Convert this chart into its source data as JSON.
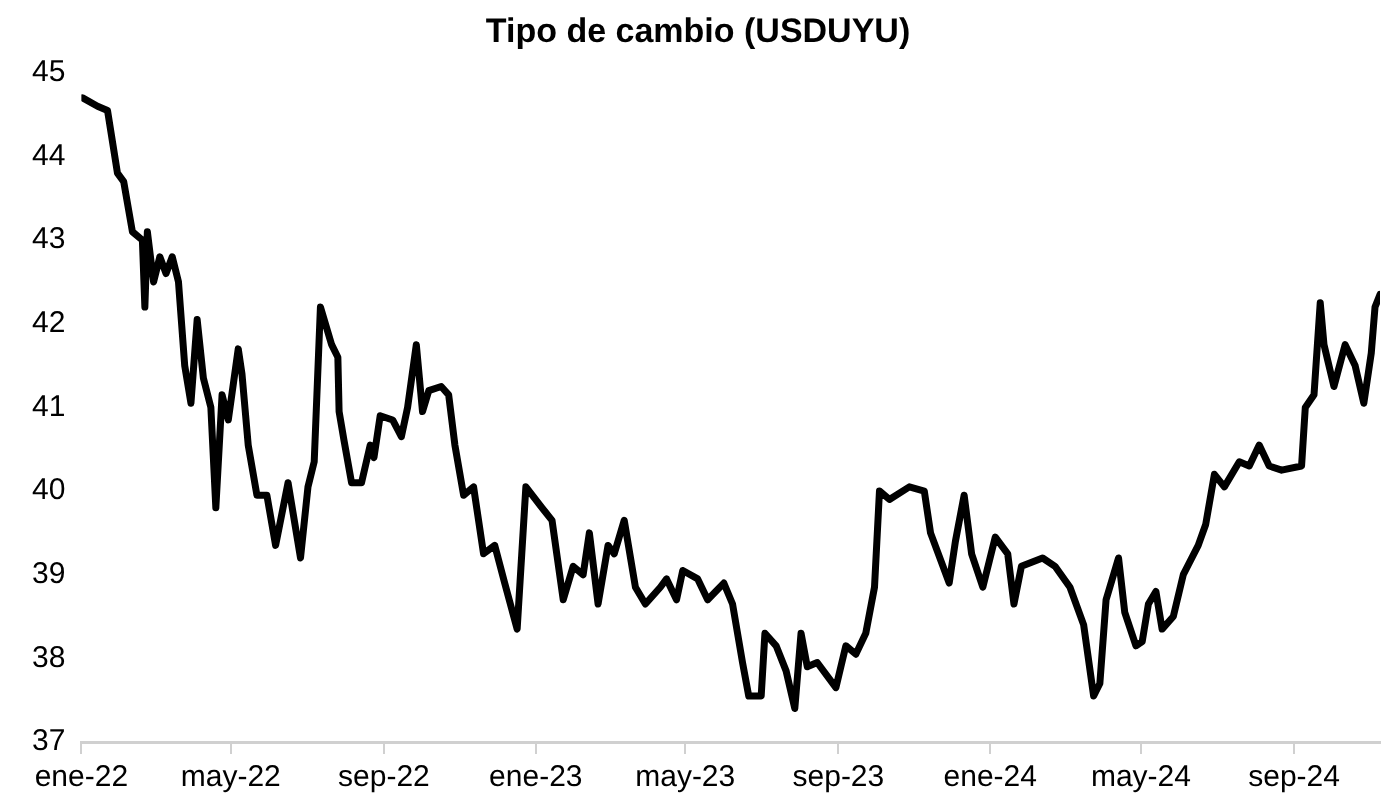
{
  "chart_data": {
    "type": "line",
    "title": "Tipo de cambio (USDUYU)",
    "x": [
      "2022-01-02",
      "2022-01-14",
      "2022-01-22",
      "2022-01-30",
      "2022-02-04",
      "2022-02-11",
      "2022-02-19",
      "2022-02-21",
      "2022-02-23",
      "2022-02-28",
      "2022-03-05",
      "2022-03-10",
      "2022-03-15",
      "2022-03-20",
      "2022-03-25",
      "2022-03-30",
      "2022-04-04",
      "2022-04-09",
      "2022-04-15",
      "2022-04-19",
      "2022-04-24",
      "2022-04-29",
      "2022-05-07",
      "2022-05-10",
      "2022-05-15",
      "2022-05-22",
      "2022-05-30",
      "2022-06-06",
      "2022-06-16",
      "2022-06-26",
      "2022-07-02",
      "2022-07-07",
      "2022-07-12",
      "2022-07-21",
      "2022-07-26",
      "2022-07-27",
      "2022-07-31",
      "2022-08-06",
      "2022-08-14",
      "2022-08-21",
      "2022-08-24",
      "2022-08-29",
      "2022-09-08",
      "2022-09-15",
      "2022-09-20",
      "2022-09-27",
      "2022-10-02",
      "2022-10-07",
      "2022-10-17",
      "2022-10-23",
      "2022-10-28",
      "2022-11-04",
      "2022-11-12",
      "2022-11-20",
      "2022-11-29",
      "2022-12-07",
      "2022-12-17",
      "2022-12-24",
      "2023-01-06",
      "2023-01-14",
      "2023-01-23",
      "2023-01-31",
      "2023-02-08",
      "2023-02-13",
      "2023-02-20",
      "2023-02-28",
      "2023-03-05",
      "2023-03-13",
      "2023-03-22",
      "2023-03-30",
      "2023-04-11",
      "2023-04-16",
      "2023-04-24",
      "2023-04-29",
      "2023-05-11",
      "2023-05-19",
      "2023-06-01",
      "2023-06-08",
      "2023-06-16",
      "2023-06-21",
      "2023-07-01",
      "2023-07-04",
      "2023-07-13",
      "2023-07-21",
      "2023-07-28",
      "2023-08-02",
      "2023-08-07",
      "2023-08-15",
      "2023-08-30",
      "2023-09-07",
      "2023-09-15",
      "2023-09-23",
      "2023-09-30",
      "2023-10-04",
      "2023-10-12",
      "2023-10-28",
      "2023-11-09",
      "2023-11-14",
      "2023-11-29",
      "2023-12-04",
      "2023-12-11",
      "2023-12-17",
      "2023-12-26",
      "2024-01-05",
      "2024-01-15",
      "2024-01-20",
      "2024-01-26",
      "2024-02-12",
      "2024-02-22",
      "2024-03-05",
      "2024-03-16",
      "2024-03-24",
      "2024-03-29",
      "2024-04-03",
      "2024-04-13",
      "2024-04-18",
      "2024-04-27",
      "2024-05-02",
      "2024-05-07",
      "2024-05-13",
      "2024-05-18",
      "2024-05-27",
      "2024-06-04",
      "2024-06-16",
      "2024-06-22",
      "2024-06-29",
      "2024-07-07",
      "2024-07-19",
      "2024-07-27",
      "2024-08-04",
      "2024-08-12",
      "2024-08-22",
      "2024-09-07",
      "2024-09-10",
      "2024-09-17",
      "2024-09-22",
      "2024-09-25",
      "2024-10-03",
      "2024-10-12",
      "2024-10-20",
      "2024-10-27",
      "2024-11-02",
      "2024-11-05",
      "2024-11-09"
    ],
    "series": [
      {
        "color": "#000000",
        "values": [
          44.7,
          44.6,
          44.55,
          43.8,
          43.7,
          43.1,
          43.0,
          42.2,
          43.1,
          42.5,
          42.8,
          42.6,
          42.8,
          42.5,
          41.5,
          41.05,
          42.05,
          41.35,
          41.0,
          39.8,
          41.15,
          40.85,
          41.7,
          41.4,
          40.55,
          39.95,
          39.95,
          39.35,
          40.1,
          39.2,
          40.05,
          40.35,
          42.2,
          41.75,
          41.6,
          40.95,
          40.6,
          40.1,
          40.1,
          40.55,
          40.4,
          40.9,
          40.85,
          40.65,
          41.0,
          41.75,
          40.95,
          41.2,
          41.25,
          41.15,
          40.55,
          39.95,
          40.05,
          39.25,
          39.35,
          38.9,
          38.35,
          40.05,
          39.8,
          39.65,
          38.7,
          39.1,
          39.0,
          39.5,
          38.65,
          39.35,
          39.25,
          39.65,
          38.85,
          38.65,
          38.85,
          38.95,
          38.7,
          39.05,
          38.95,
          38.7,
          38.9,
          38.65,
          37.95,
          37.55,
          37.55,
          38.3,
          38.15,
          37.85,
          37.4,
          38.3,
          37.9,
          37.95,
          37.65,
          38.15,
          38.05,
          38.3,
          38.85,
          40.0,
          39.9,
          40.05,
          40.0,
          39.5,
          38.9,
          39.4,
          39.95,
          39.25,
          38.85,
          39.45,
          39.25,
          38.65,
          39.1,
          39.2,
          39.1,
          38.85,
          38.4,
          37.55,
          37.7,
          38.7,
          39.2,
          38.55,
          38.15,
          38.2,
          38.65,
          38.8,
          38.35,
          38.5,
          39.0,
          39.35,
          39.6,
          40.2,
          40.05,
          40.35,
          40.3,
          40.55,
          40.3,
          40.25,
          40.3,
          41.0,
          41.15,
          42.25,
          41.75,
          41.25,
          41.75,
          41.5,
          41.05,
          41.65,
          42.2,
          42.35
        ]
      }
    ],
    "xlim": [
      "2022-01-01",
      "2024-11-09"
    ],
    "xticks": [
      {
        "value": "2022-01",
        "label": "ene-22"
      },
      {
        "value": "2022-05",
        "label": "may-22"
      },
      {
        "value": "2022-09",
        "label": "sep-22"
      },
      {
        "value": "2023-01",
        "label": "ene-23"
      },
      {
        "value": "2023-05",
        "label": "may-23"
      },
      {
        "value": "2023-09",
        "label": "sep-23"
      },
      {
        "value": "2024-01",
        "label": "ene-24"
      },
      {
        "value": "2024-05",
        "label": "may-24"
      },
      {
        "value": "2024-09",
        "label": "sep-24"
      }
    ],
    "ylim": [
      37,
      45
    ],
    "yticks": [
      37,
      38,
      39,
      40,
      41,
      42,
      43,
      44,
      45
    ],
    "grid": false,
    "legend": false,
    "marker": "none",
    "line_style": "solid"
  }
}
